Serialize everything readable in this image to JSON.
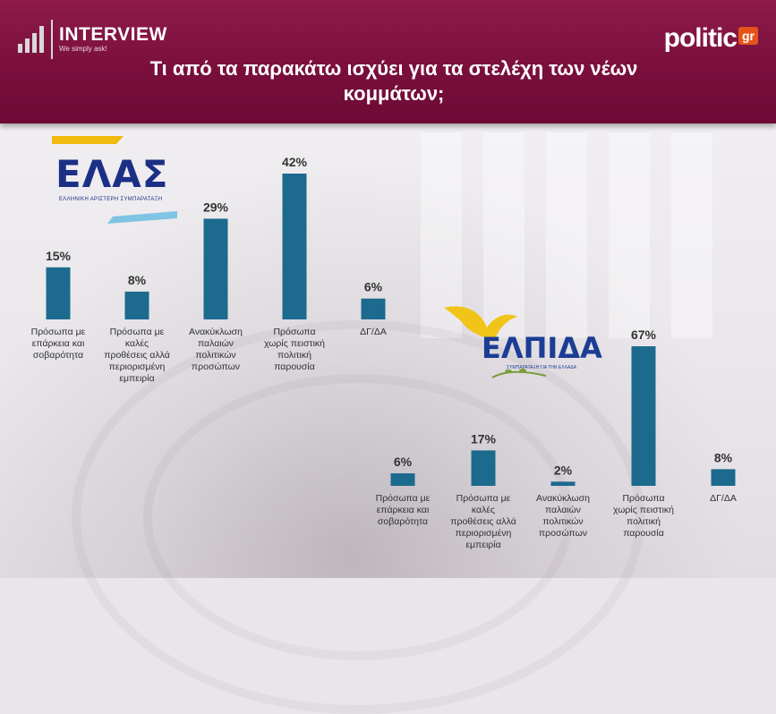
{
  "header": {
    "brand_name": "INTERVIEW",
    "brand_tagline": "We simply ask!",
    "politic_text": "politic",
    "politic_badge": "gr",
    "title_line1": "Τι από τα παρακάτω ισχύει για τα στελέχη των νέων",
    "title_line2": "κομμάτων;"
  },
  "logos": {
    "elas_word": "ΕΛΑΣ",
    "elas_sub": "ΕΛΛΗΝΙΚΗ ΑΡΙΣΤΕΡΗ ΣΥΜΠΑΡΑΤΑΞΗ",
    "elpida_word": "ΕΛΠΙΔΑ",
    "elpida_sub": "ΣΥΜΠΑΡΑΤΑΞΗ ΓΙΑ ΤΗΝ ΕΛΛΑΔΑ"
  },
  "colors": {
    "bar": "#1c6a8e",
    "header": "#7d1140",
    "brand_accent": "#e5531a"
  },
  "chart_data": [
    {
      "type": "bar",
      "party": "ΕΛΑΣ",
      "categories": [
        [
          "Πρόσωπα με",
          "επάρκεια και",
          "σοβαρότητα"
        ],
        [
          "Πρόσωπα με",
          "καλές",
          "προθέσεις αλλά",
          "περιορισμένη",
          "εμπειρία"
        ],
        [
          "Ανακύκλωση",
          "παλαιών",
          "πολιτικών",
          "προσώπων"
        ],
        [
          "Πρόσωπα",
          "χωρίς πειστική",
          "πολιτική",
          "παρουσία"
        ],
        [
          "ΔΓ/ΔΑ"
        ]
      ],
      "values": [
        15,
        8,
        29,
        42,
        6
      ],
      "labels": [
        "15%",
        "8%",
        "29%",
        "42%",
        "6%"
      ],
      "ylim": [
        0,
        42
      ]
    },
    {
      "type": "bar",
      "party": "ΕΛΠΙΔΑ",
      "categories": [
        [
          "Πρόσωπα με",
          "επάρκεια και",
          "σοβαρότητα"
        ],
        [
          "Πρόσωπα με",
          "καλές",
          "προθέσεις αλλά",
          "περιορισμένη",
          "εμπειρία"
        ],
        [
          "Ανακύκλωση",
          "παλαιών",
          "πολιτικών",
          "προσώπων"
        ],
        [
          "Πρόσωπα",
          "χωρίς πειστική",
          "πολιτική",
          "παρουσία"
        ],
        [
          "ΔΓ/ΔΑ"
        ]
      ],
      "values": [
        6,
        17,
        2,
        67,
        8
      ],
      "labels": [
        "6%",
        "17%",
        "2%",
        "67%",
        "8%"
      ],
      "ylim": [
        0,
        67
      ]
    }
  ]
}
